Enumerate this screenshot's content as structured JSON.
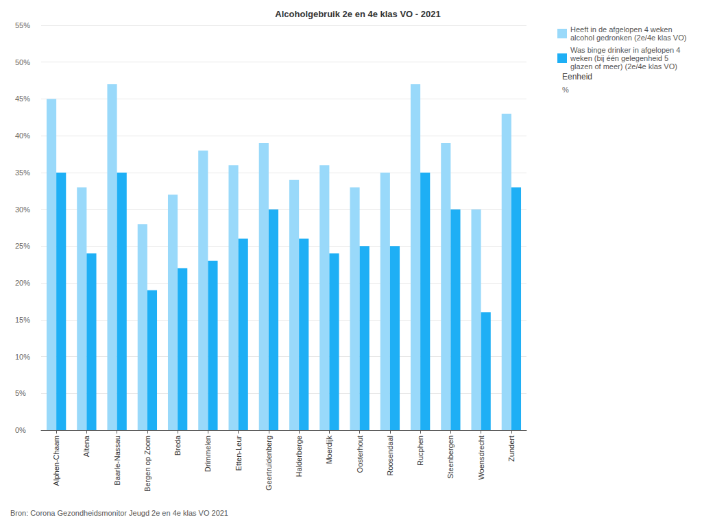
{
  "chart_data": {
    "type": "bar",
    "title": "Alcoholgebruik 2e en 4e klas VO - 2021",
    "categories": [
      "Alphen-Chaam",
      "Altena",
      "Baarle-Nassau",
      "Bergen op Zoom",
      "Breda",
      "Drimmelen",
      "Etten-Leur",
      "Geertruidenberg",
      "Halderberge",
      "Moerdijk",
      "Oosterhout",
      "Roosendaal",
      "Rucphen",
      "Steenbergen",
      "Woensdrecht",
      "Zundert"
    ],
    "series": [
      {
        "name": "Heeft in de afgelopen 4 weken alcohol gedronken (2e/4e klas VO)",
        "color": "#99d9fa",
        "values": [
          45,
          33,
          47,
          28,
          32,
          38,
          36,
          39,
          34,
          36,
          33,
          35,
          47,
          39,
          30,
          43
        ]
      },
      {
        "name": "Was binge drinker in afgelopen 4 weken (bij één gelegenheid 5 glazen of meer) (2e/4e klas VO)",
        "color": "#1eaff5",
        "values": [
          35,
          24,
          35,
          19,
          22,
          23,
          26,
          30,
          26,
          24,
          25,
          25,
          35,
          30,
          16,
          33
        ]
      }
    ],
    "ylim": [
      0,
      55
    ],
    "yticks": [
      {
        "value": 0,
        "label": "0%"
      },
      {
        "value": 5,
        "label": "5%"
      },
      {
        "value": 10,
        "label": "10%"
      },
      {
        "value": 15,
        "label": "15%"
      },
      {
        "value": 20,
        "label": "20%"
      },
      {
        "value": 25,
        "label": "25%"
      },
      {
        "value": 30,
        "label": "30%"
      },
      {
        "value": 35,
        "label": "35%"
      },
      {
        "value": 40,
        "label": "40%"
      },
      {
        "value": 45,
        "label": "45%"
      },
      {
        "value": 50,
        "label": "50%"
      },
      {
        "value": 55,
        "label": "55%"
      }
    ],
    "grid": true,
    "legend": "right",
    "annotations": [
      "Eenheid",
      "%"
    ],
    "source": "Bron: Corona Gezondheidsmonitor Jeugd 2e en 4e klas VO 2021"
  }
}
